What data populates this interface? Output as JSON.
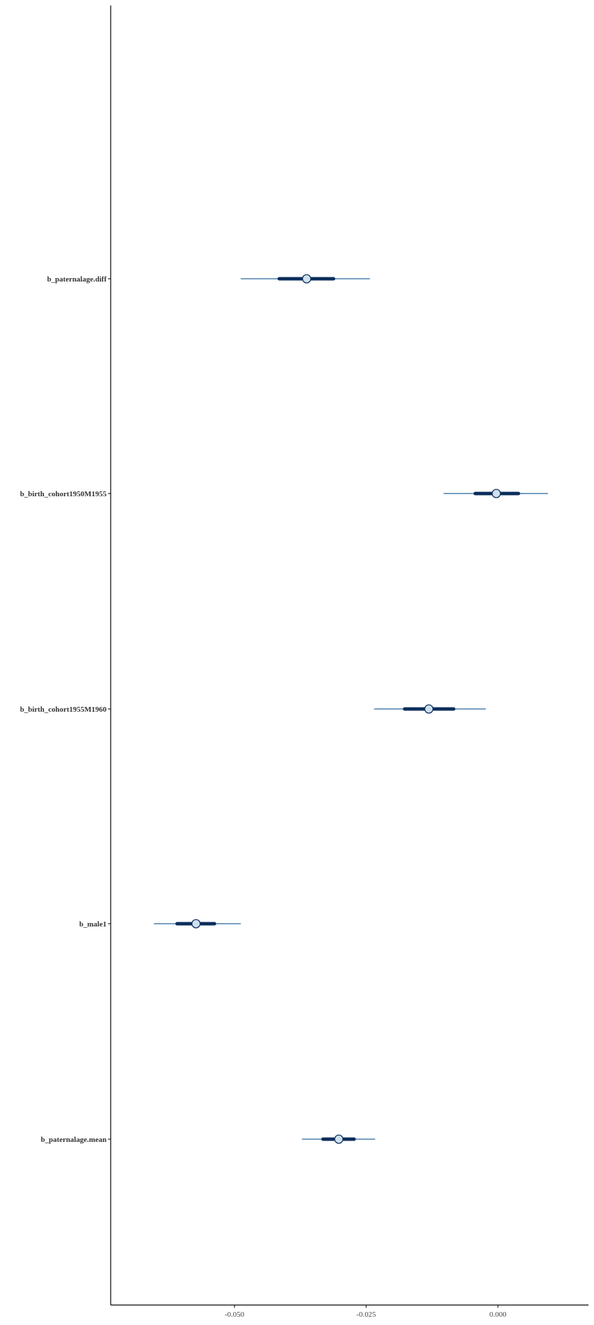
{
  "chart_data": {
    "type": "interval",
    "title": "",
    "xlabel": "",
    "ylabel": "",
    "xlim": [
      -0.0735,
      0.0172
    ],
    "x_ticks": [
      -0.05,
      -0.025,
      0.0
    ],
    "x_tick_labels": [
      "-0.050",
      "-0.025",
      "0.000"
    ],
    "grid": false,
    "legend": "none",
    "parameters": [
      {
        "label": "b_paternalage.diff",
        "median": -0.0363,
        "inner": [
          -0.0415,
          -0.0312
        ],
        "outer": [
          -0.0488,
          -0.0243
        ]
      },
      {
        "label": "b_birth_cohort1950M1955",
        "median": -0.0003,
        "inner": [
          -0.0043,
          0.0039
        ],
        "outer": [
          -0.0103,
          0.0095
        ]
      },
      {
        "label": "b_birth_cohort1955M1960",
        "median": -0.0131,
        "inner": [
          -0.0177,
          -0.0084
        ],
        "outer": [
          -0.0235,
          -0.0023
        ]
      },
      {
        "label": "b_male1",
        "median": -0.0573,
        "inner": [
          -0.0609,
          -0.0538
        ],
        "outer": [
          -0.0653,
          -0.0488
        ]
      },
      {
        "label": "b_paternalage.mean",
        "median": -0.0302,
        "inner": [
          -0.0332,
          -0.0273
        ],
        "outer": [
          -0.0372,
          -0.0233
        ]
      }
    ],
    "colors": {
      "outer_line": "#4a7eab",
      "inner_line": "#0b2d5b",
      "point_fill": "#cfe0ef",
      "point_stroke": "#0b2d5b",
      "axis": "#000000"
    }
  }
}
